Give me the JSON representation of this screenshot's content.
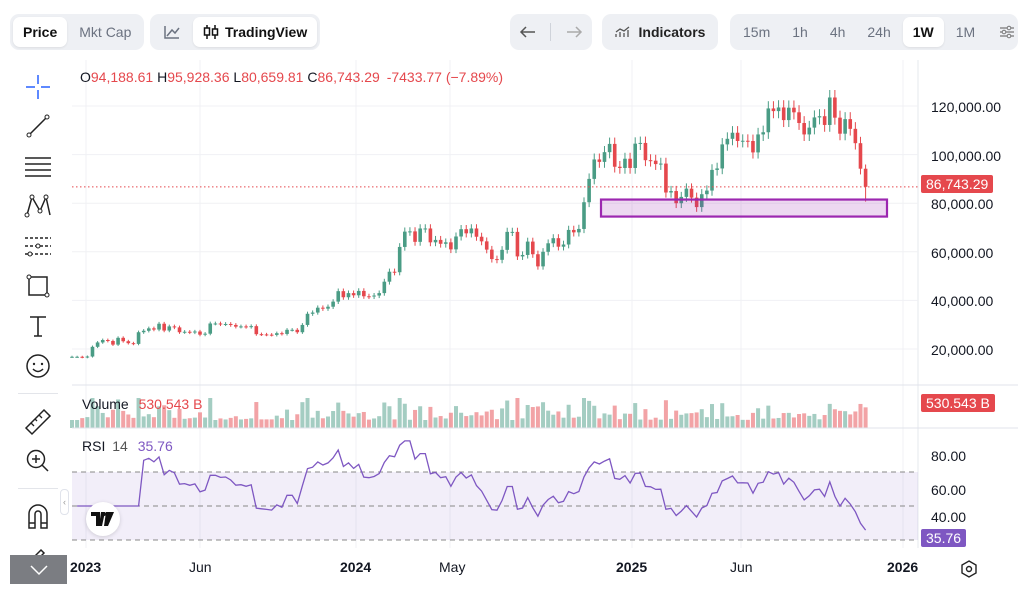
{
  "toolbar": {
    "mode_tabs": [
      {
        "label": "Price",
        "active": true
      },
      {
        "label": "Mkt Cap",
        "active": false
      }
    ],
    "chart_type": {
      "line_icon": "line-chart-icon",
      "tradingview_label": "TradingView",
      "active": "TradingView"
    },
    "nav": {
      "back_icon": "arrow-left-icon",
      "forward_icon": "arrow-right-icon"
    },
    "indicators_label": "Indicators",
    "intervals": [
      "15m",
      "1h",
      "4h",
      "24h",
      "1W",
      "1M"
    ],
    "active_interval": "1W",
    "settings_icon": "sliders-icon"
  },
  "left_tools": [
    "crosshair-icon",
    "trend-line-icon",
    "fib-lines-icon",
    "pattern-icon",
    "forecast-icon",
    "rectangle-icon",
    "text-icon",
    "emoji-icon",
    "ruler-icon",
    "zoom-in-icon",
    "magnet-icon",
    "lock-drawing-icon"
  ],
  "legend": {
    "o_label": "O",
    "o": "94,188.61",
    "h_label": "H",
    "h": "95,928.36",
    "l_label": "L",
    "l": "80,659.81",
    "c_label": "C",
    "c": "86,743.29",
    "change": "-7433.77 (−7.89%)"
  },
  "price_axis": [
    "120,000.00",
    "100,000.00",
    "80,000.00",
    "60,000.00",
    "40,000.00",
    "20,000.00"
  ],
  "current_price_tag": "86,743.29",
  "volume": {
    "label": "Volume",
    "value": "530.543 B",
    "tag": "530.543 B"
  },
  "rsi": {
    "label": "RSI",
    "period": "14",
    "value": "35.76",
    "tag": "35.76",
    "axis": [
      "80.00",
      "60.00",
      "40.00"
    ],
    "upper": 70,
    "middle": 50,
    "lower": 30
  },
  "time_axis": [
    {
      "label": "2023",
      "bold": true
    },
    {
      "label": "Jun",
      "bold": false
    },
    {
      "label": "2024",
      "bold": true
    },
    {
      "label": "May",
      "bold": false
    },
    {
      "label": "2025",
      "bold": true
    },
    {
      "label": "Jun",
      "bold": false
    },
    {
      "label": "2026",
      "bold": true
    }
  ],
  "colors": {
    "up": "#4a9c85",
    "down": "#e5484d",
    "rsi": "#7e57c2",
    "zone": "#9c27b0",
    "price_line": "#e5484d"
  },
  "chart_data": {
    "type": "candlestick",
    "interval": "1W",
    "x_start": "2022-12",
    "closes_k_usd": [
      16.8,
      16.8,
      16.6,
      16.9,
      20.9,
      22.7,
      23.7,
      23.3,
      21.8,
      24.6,
      23.2,
      22.4,
      22.1,
      26.9,
      27.5,
      28.5,
      28.0,
      30.4,
      27.6,
      29.3,
      28.9,
      26.9,
      27.1,
      26.8,
      27.2,
      25.9,
      26.3,
      30.5,
      30.5,
      30.2,
      30.3,
      29.9,
      29.2,
      29.3,
      29.1,
      29.4,
      26.1,
      26.0,
      25.9,
      25.8,
      26.5,
      26.2,
      27.9,
      27.9,
      26.9,
      29.9,
      34.5,
      35.0,
      37.0,
      36.6,
      37.4,
      39.5,
      43.8,
      41.3,
      43.0,
      42.1,
      43.9,
      41.7,
      41.6,
      42.0,
      43.0,
      47.7,
      51.8,
      51.6,
      62.0,
      68.3,
      68.4,
      64.1,
      69.6,
      69.6,
      63.9,
      64.9,
      63.3,
      63.9,
      61.0,
      66.3,
      69.3,
      67.6,
      69.6,
      66.2,
      64.3,
      60.9,
      57.0,
      56.7,
      60.8,
      68.2,
      68.2,
      58.1,
      58.7,
      64.2,
      59.0,
      54.0,
      60.0,
      63.5,
      65.6,
      62.1,
      63.0,
      69.0,
      68.0,
      69.4,
      80.4,
      90.0,
      98.0,
      97.0,
      101.0,
      104.4,
      95.0,
      94.5,
      98.3,
      94.5,
      104.5,
      104.8,
      97.7,
      97.5,
      96.1,
      96.3,
      84.4,
      85.0,
      80.0,
      82.6,
      86.0,
      82.3,
      78.4,
      83.7,
      85.2,
      93.7,
      94.3,
      104.2,
      106.5,
      109.0,
      105.6,
      105.7,
      105.6,
      100.9,
      108.3,
      109.2,
      119.0,
      117.9,
      119.4,
      114.2,
      119.3,
      117.4,
      113.0,
      108.3,
      111.1,
      115.3,
      115.8,
      112.2,
      123.5,
      115.2,
      108.6,
      114.6,
      110.6,
      104.7,
      94.2,
      86.74
    ],
    "last_candle": {
      "open": 94188.61,
      "high": 95928.36,
      "low": 80659.81,
      "close": 86743.29
    },
    "current_price": 86743.29,
    "zone_k_usd": [
      74.5,
      81.5
    ],
    "ylim_k_usd": [
      0,
      130
    ]
  }
}
